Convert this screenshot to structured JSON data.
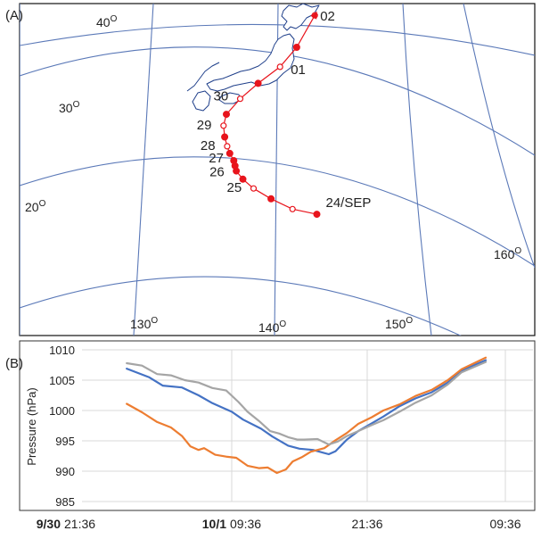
{
  "chart_data": [
    {
      "type": "map",
      "panel_label": "(A)",
      "latitude_labels": [
        {
          "deg": "40",
          "unit": "O"
        },
        {
          "deg": "30",
          "unit": "O"
        },
        {
          "deg": "20",
          "unit": "O"
        }
      ],
      "longitude_labels": [
        {
          "deg": "130",
          "unit": "O"
        },
        {
          "deg": "140",
          "unit": "O"
        },
        {
          "deg": "150",
          "unit": "O"
        },
        {
          "deg": "160",
          "unit": "O"
        }
      ],
      "track": {
        "color": "#e8141c",
        "points": [
          {
            "lon": 143.0,
            "lat": 19.3,
            "label": "24/SEP",
            "filled": true
          },
          {
            "lon": 141.2,
            "lat": 19.8,
            "label": "",
            "filled": false
          },
          {
            "lon": 139.6,
            "lat": 20.8,
            "label": "",
            "filled": true
          },
          {
            "lon": 138.3,
            "lat": 21.8,
            "label": "25",
            "filled": false
          },
          {
            "lon": 137.5,
            "lat": 22.7,
            "label": "",
            "filled": true
          },
          {
            "lon": 137.0,
            "lat": 23.5,
            "label": "26",
            "filled": true
          },
          {
            "lon": 136.9,
            "lat": 24.0,
            "label": "",
            "filled": true
          },
          {
            "lon": 136.8,
            "lat": 24.5,
            "label": "27",
            "filled": true
          },
          {
            "lon": 136.5,
            "lat": 25.2,
            "label": "",
            "filled": true
          },
          {
            "lon": 136.3,
            "lat": 25.9,
            "label": "28",
            "filled": false
          },
          {
            "lon": 136.1,
            "lat": 26.8,
            "label": "",
            "filled": true
          },
          {
            "lon": 136.0,
            "lat": 27.9,
            "label": "29",
            "filled": false
          },
          {
            "lon": 136.2,
            "lat": 29.0,
            "label": "",
            "filled": true
          },
          {
            "lon": 137.2,
            "lat": 30.5,
            "label": "30",
            "filled": false
          },
          {
            "lon": 138.5,
            "lat": 32.0,
            "label": "",
            "filled": true
          },
          {
            "lon": 140.1,
            "lat": 33.6,
            "label": "01",
            "filled": false
          },
          {
            "lon": 141.3,
            "lat": 35.5,
            "label": "",
            "filled": true
          },
          {
            "lon": 142.6,
            "lat": 38.6,
            "label": "02",
            "filled": false
          }
        ]
      }
    },
    {
      "type": "line",
      "panel_label": "(B)",
      "ylabel": "Pressure (hPa)",
      "ylim": [
        985,
        1010
      ],
      "yticks": [
        985,
        990,
        995,
        1000,
        1005,
        1010
      ],
      "x_tick_labels": [
        "9/30 21:36",
        "10/1 09:36",
        "21:36",
        "09:36"
      ],
      "x_date_labels": [
        "9/30",
        "10/1",
        "",
        ""
      ],
      "x_time_labels": [
        "21:36",
        "09:36",
        "21:36",
        "09:36"
      ],
      "xlim_hours": [
        0,
        36
      ],
      "grid": true,
      "series": [
        {
          "color": "#4472c4",
          "x": [
            4.4,
            6,
            7,
            8.4,
            9.6,
            10.6,
            12,
            13,
            14.6,
            15.6,
            17,
            18,
            19.2,
            20.6,
            21.2,
            22.2,
            23.2,
            24.4,
            25.4,
            26.8,
            28.2,
            29.6,
            31,
            32.2,
            34.3
          ],
          "y": [
            1006.9,
            1005.5,
            1004.1,
            1003.8,
            1002.5,
            1001.2,
            999.8,
            998.5,
            997.0,
            995.7,
            994.2,
            993.7,
            993.5,
            992.8,
            993.3,
            995.2,
            996.6,
            997.9,
            999.0,
            1000.7,
            1002.0,
            1003.0,
            1004.6,
            1006.6,
            1008.3
          ]
        },
        {
          "color": "#ed7d31",
          "x": [
            4.4,
            5.5,
            6.6,
            7.6,
            8.4,
            9,
            9.6,
            10,
            10.8,
            11.6,
            12.4,
            13.4,
            14.4,
            15.2,
            16,
            16.8,
            17.4,
            18.2,
            19,
            20.2,
            21.2,
            22.2,
            23.2,
            24.4,
            25.4,
            26.8,
            28.2,
            29.6,
            31,
            32.2,
            34.3
          ],
          "y": [
            1001.1,
            999.7,
            998.1,
            997.2,
            995.8,
            994.1,
            993.5,
            993.8,
            992.7,
            992.4,
            992.2,
            990.9,
            990.5,
            990.6,
            989.7,
            990.3,
            991.6,
            992.3,
            993.2,
            993.8,
            995.1,
            996.3,
            997.8,
            998.9,
            1000.0,
            1001.0,
            1002.4,
            1003.4,
            1005.0,
            1006.8,
            1008.7
          ]
        },
        {
          "color": "#a5a5a5",
          "x": [
            4.4,
            5.5,
            6.6,
            7.6,
            8.6,
            9.6,
            10.6,
            11.6,
            12.6,
            13.4,
            14.4,
            15.4,
            16.2,
            17,
            17.8,
            18.4,
            19.6,
            20.6,
            21.4,
            22.2,
            23.2,
            24.4,
            25.4,
            26.8,
            28.2,
            29.6,
            31,
            32.2,
            34.3
          ],
          "y": [
            1007.8,
            1007.4,
            1006.0,
            1005.8,
            1005.0,
            1004.6,
            1003.7,
            1003.3,
            1001.4,
            999.8,
            998.3,
            996.6,
            996.2,
            995.6,
            995.2,
            995.2,
            995.3,
            994.4,
            994.9,
            995.8,
            996.6,
            997.6,
            998.4,
            999.8,
            1001.3,
            1002.5,
            1004.3,
            1006.3,
            1008.0
          ]
        }
      ]
    }
  ]
}
